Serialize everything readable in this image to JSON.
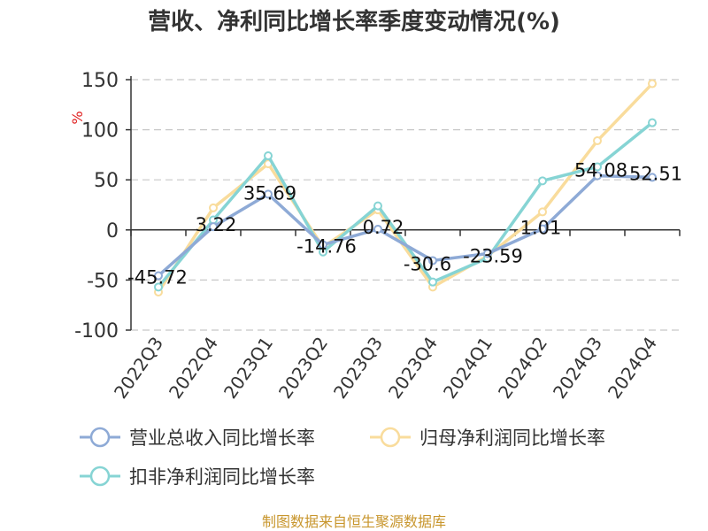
{
  "chart_data": {
    "type": "line",
    "title": "营收、净利同比增长率季度变动情况(%)",
    "ylabel": "%",
    "categories": [
      "2022Q3",
      "2022Q4",
      "2023Q1",
      "2023Q2",
      "2023Q3",
      "2023Q4",
      "2024Q1",
      "2024Q2",
      "2024Q3",
      "2024Q4"
    ],
    "ylim": [
      -100,
      150
    ],
    "yticks": [
      -100,
      -50,
      0,
      50,
      100,
      150
    ],
    "grid": true,
    "legend_position": "bottom",
    "series": [
      {
        "name": "营业总收入同比增长率",
        "color": "#8eaad6",
        "values": [
          -45.72,
          3.22,
          35.69,
          -14.76,
          0.72,
          -30.6,
          -23.59,
          1.01,
          54.08,
          52.51
        ],
        "labels": [
          "-45.72",
          "3.22",
          "35.69",
          "-14.76",
          "0.72",
          "-30.6",
          "-23.59",
          "1.01",
          "54.08",
          "52.51"
        ]
      },
      {
        "name": "归母净利润同比增长率",
        "color": "#f9dc9c",
        "values": [
          -62,
          22,
          66,
          -17,
          20,
          -57,
          -26,
          18,
          89,
          146
        ]
      },
      {
        "name": "扣非净利润同比增长率",
        "color": "#86d4d4",
        "values": [
          -57,
          10,
          74,
          -22,
          24,
          -52,
          -28,
          49,
          63,
          107
        ]
      }
    ]
  },
  "source": "制图数据来自恒生聚源数据库"
}
